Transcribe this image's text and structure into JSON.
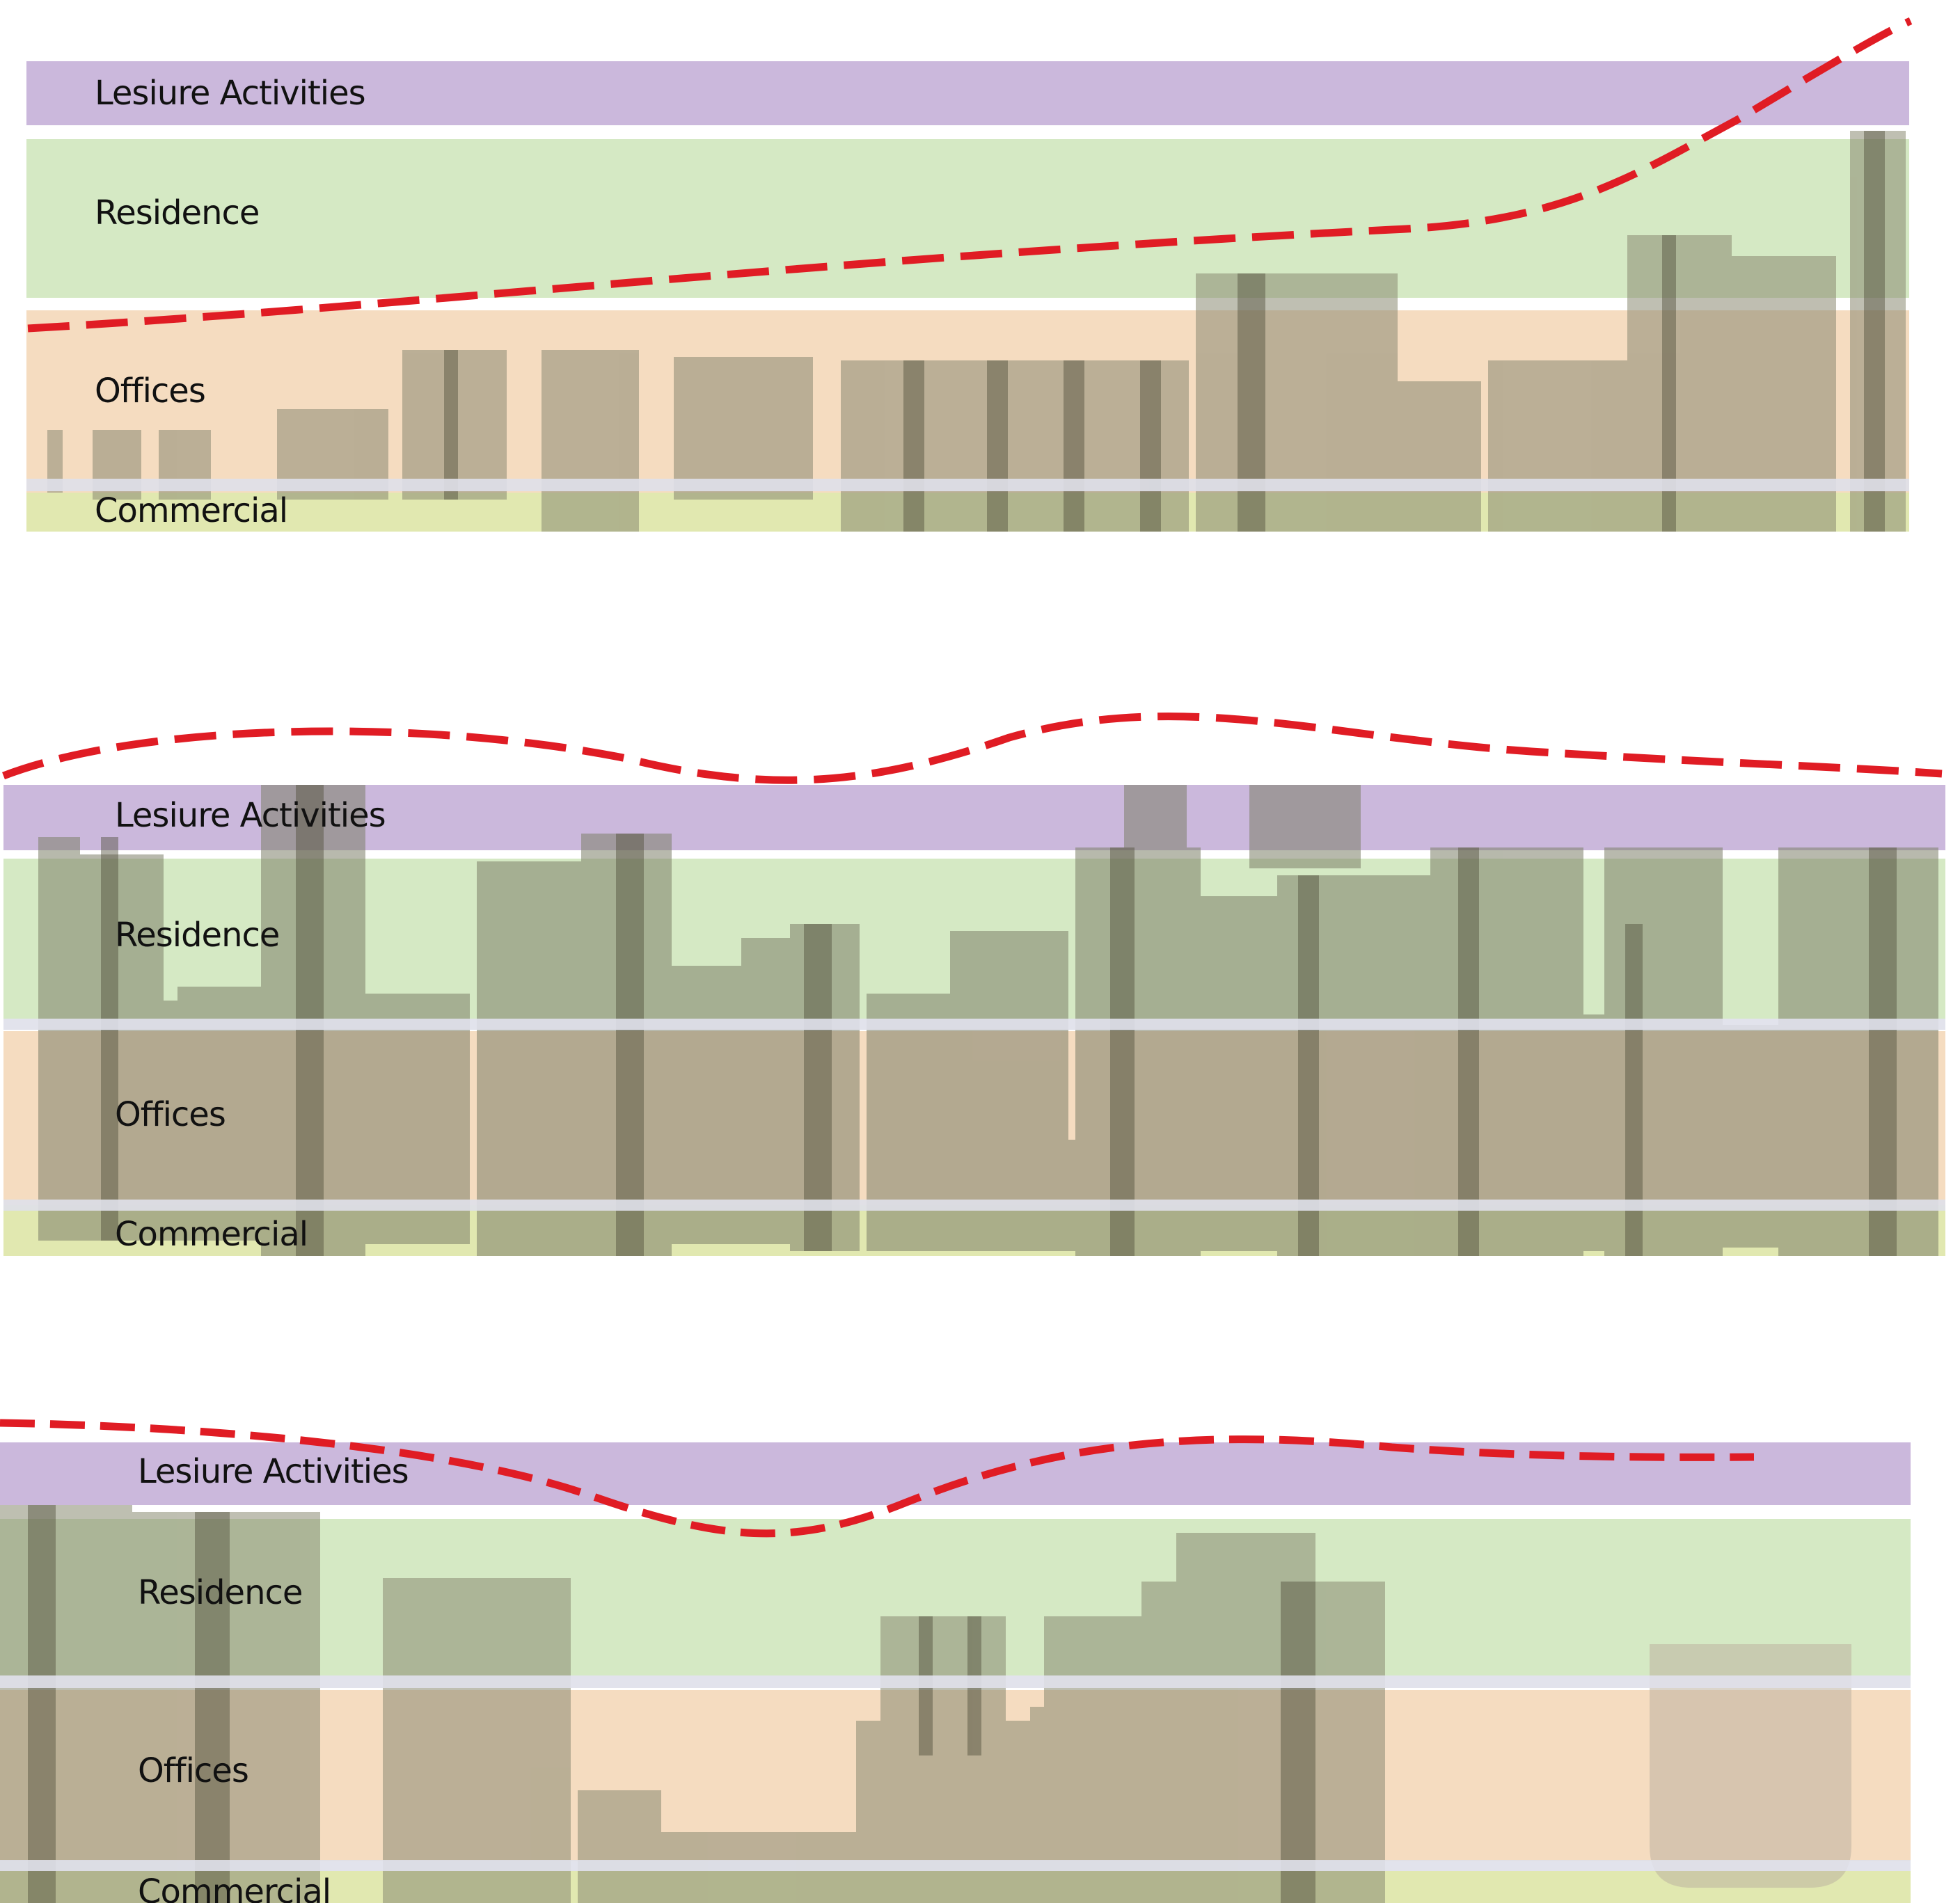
{
  "panels": [
    {
      "labels": {
        "leisure": "Lesiure Activities",
        "residence": "Residence",
        "offices": "Offices",
        "commercial": "Commercial"
      }
    },
    {
      "labels": {
        "leisure": "Lesiure Activities",
        "residence": "Residence",
        "offices": "Offices",
        "commercial": "Commercial"
      }
    },
    {
      "labels": {
        "leisure": "Lesiure Activities",
        "residence": "Residence",
        "offices": "Offices",
        "commercial": "Commercial"
      }
    }
  ],
  "colors": {
    "leisure": "#cbb8dc",
    "residence": "#d5e9c4",
    "offices": "#f5dcc0",
    "commercial": "#e1e8b0",
    "curve": "#e01c24"
  }
}
